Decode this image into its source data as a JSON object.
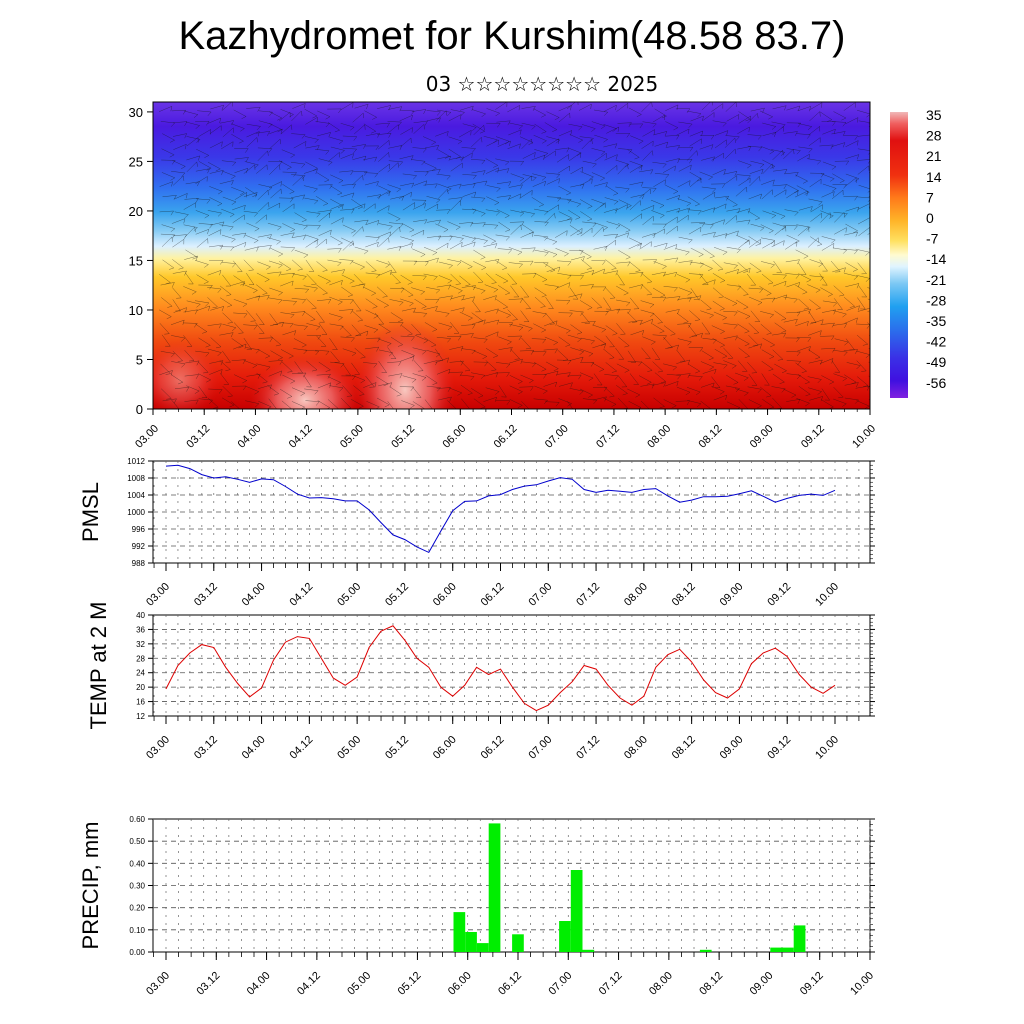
{
  "title": "Kazhydromet for Kurshim(48.58 83.7)",
  "subtitle": "03 ☆☆☆☆☆☆☆☆ 2025",
  "colors": {
    "pmsl_line": "#0000cc",
    "temp_line": "#dd0000",
    "precip_bar": "#00ee00"
  },
  "chart_data": [
    {
      "type": "heatmap",
      "title": "",
      "x_ticks": [
        "03.00",
        "03.12",
        "04.00",
        "04.12",
        "05.00",
        "05.12",
        "06.00",
        "06.12",
        "07.00",
        "07.12",
        "08.00",
        "08.12",
        "09.00",
        "09.12",
        "10.00"
      ],
      "y_ticks": [
        0,
        5,
        10,
        15,
        20,
        25,
        30
      ],
      "ylim": [
        0,
        31
      ],
      "colorbar_labels": [
        "35",
        "28",
        "21",
        "14",
        "7",
        "0",
        "-7",
        "-14",
        "-21",
        "-28",
        "-35",
        "-42",
        "-49",
        "-56"
      ],
      "colorbar_range": [
        -60,
        38
      ],
      "wind_barbs": true
    },
    {
      "type": "line",
      "ylabel": "PMSL",
      "x_ticks": [
        "03.00",
        "03.12",
        "04.00",
        "04.12",
        "05.00",
        "05.12",
        "06.00",
        "06.12",
        "07.00",
        "07.12",
        "08.00",
        "08.12",
        "09.00",
        "09.12",
        "10.00"
      ],
      "y_ticks": [
        988,
        992,
        996,
        1000,
        1004,
        1008,
        1012
      ],
      "ylim": [
        988,
        1012
      ],
      "grid": true,
      "series": [
        {
          "values": [
            1010.8,
            1011.0,
            1010.2,
            1008.8,
            1008.0,
            1008.3,
            1007.7,
            1007.0,
            1007.8,
            1007.6,
            1006.0,
            1004.2,
            1003.3,
            1003.4,
            1003.1,
            1002.6,
            1002.6,
            1000.5,
            997.5,
            994.6,
            993.5,
            991.8,
            990.5,
            995.5,
            1000.3,
            1002.5,
            1002.6,
            1003.8,
            1004.1,
            1005.3,
            1006.1,
            1006.4,
            1007.3,
            1008.1,
            1007.7,
            1005.3,
            1004.6,
            1005.1,
            1004.9,
            1004.6,
            1005.3,
            1005.5,
            1003.8,
            1002.3,
            1002.8,
            1003.6,
            1003.6,
            1003.7,
            1004.3,
            1005.0,
            1003.7,
            1002.3,
            1003.2,
            1003.9,
            1004.2,
            1003.9,
            1005.1
          ]
        }
      ]
    },
    {
      "type": "line",
      "ylabel": "TEMP at 2 M",
      "x_ticks": [
        "03.00",
        "03.12",
        "04.00",
        "04.12",
        "05.00",
        "05.12",
        "06.00",
        "06.12",
        "07.00",
        "07.12",
        "08.00",
        "08.12",
        "09.00",
        "09.12",
        "10.00"
      ],
      "y_ticks": [
        12,
        16,
        20,
        24,
        28,
        32,
        36,
        40
      ],
      "ylim": [
        12,
        40
      ],
      "grid": true,
      "series": [
        {
          "values": [
            19.5,
            26.0,
            29.5,
            31.8,
            31.0,
            25.5,
            21.0,
            17.3,
            19.8,
            27.5,
            32.5,
            34.0,
            33.5,
            28.0,
            22.5,
            20.5,
            22.8,
            31.0,
            35.5,
            37.0,
            33.0,
            28.0,
            25.5,
            20.0,
            17.5,
            20.5,
            25.5,
            23.5,
            25.0,
            20.0,
            15.5,
            13.5,
            15.0,
            18.5,
            21.5,
            26.0,
            25.0,
            20.5,
            17.0,
            15.0,
            17.5,
            25.5,
            29.0,
            30.5,
            27.0,
            22.0,
            18.5,
            17.0,
            19.5,
            26.5,
            29.5,
            30.8,
            28.5,
            23.5,
            20.0,
            18.3,
            20.5
          ]
        }
      ]
    },
    {
      "type": "bar",
      "ylabel": "PRECIP, mm",
      "x_ticks": [
        "03.00",
        "03.12",
        "04.00",
        "04.12",
        "05.00",
        "05.12",
        "06.00",
        "06.12",
        "07.00",
        "07.12",
        "08.00",
        "08.12",
        "09.00",
        "09.12",
        "10.00"
      ],
      "y_ticks": [
        "0.00",
        "0.10",
        "0.20",
        "0.30",
        "0.40",
        "0.50",
        "0.60"
      ],
      "ylim": [
        0,
        0.6
      ],
      "grid": true,
      "values": [
        0,
        0,
        0,
        0,
        0,
        0,
        0,
        0,
        0,
        0,
        0,
        0,
        0,
        0,
        0,
        0,
        0,
        0,
        0,
        0,
        0,
        0,
        0,
        0,
        0,
        0.18,
        0.09,
        0.04,
        0.58,
        0,
        0.08,
        0,
        0,
        0,
        0.14,
        0.37,
        0.01,
        0,
        0,
        0,
        0,
        0,
        0,
        0,
        0,
        0,
        0.01,
        0,
        0,
        0,
        0,
        0,
        0.02,
        0.02,
        0.12,
        0,
        0
      ]
    }
  ]
}
